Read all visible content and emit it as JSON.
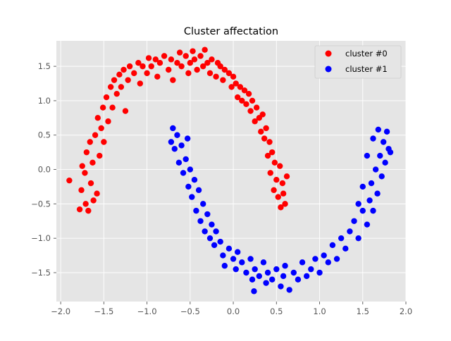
{
  "chart_data": {
    "type": "scatter",
    "title": "Cluster affectation",
    "xlabel": "",
    "ylabel": "",
    "xlim": [
      -2.05,
      2.0
    ],
    "ylim": [
      -1.92,
      1.87
    ],
    "xticks": [
      -2.0,
      -1.5,
      -1.0,
      -0.5,
      0.0,
      0.5,
      1.0,
      1.5,
      2.0
    ],
    "xtick_labels": [
      "−2.0",
      "−1.5",
      "−1.0",
      "−0.5",
      "0.0",
      "0.5",
      "1.0",
      "1.5",
      "2.0"
    ],
    "yticks": [
      -1.5,
      -1.0,
      -0.5,
      0.0,
      0.5,
      1.0,
      1.5
    ],
    "ytick_labels": [
      "−1.5",
      "−1.0",
      "−0.5",
      "0.0",
      "0.5",
      "1.0",
      "1.5"
    ],
    "grid": true,
    "style": "ggplot",
    "legend_position": "top-right",
    "series": [
      {
        "name": "cluster #0",
        "color": "#ff0000",
        "points": [
          [
            -1.9,
            -0.16
          ],
          [
            -1.78,
            -0.58
          ],
          [
            -1.76,
            -0.3
          ],
          [
            -1.75,
            0.05
          ],
          [
            -1.72,
            -0.05
          ],
          [
            -1.71,
            -0.5
          ],
          [
            -1.7,
            0.25
          ],
          [
            -1.68,
            -0.6
          ],
          [
            -1.66,
            0.4
          ],
          [
            -1.65,
            -0.2
          ],
          [
            -1.63,
            0.1
          ],
          [
            -1.62,
            -0.45
          ],
          [
            -1.6,
            0.5
          ],
          [
            -1.58,
            -0.35
          ],
          [
            -1.57,
            0.75
          ],
          [
            -1.55,
            0.2
          ],
          [
            -1.53,
            0.6
          ],
          [
            -1.51,
            0.9
          ],
          [
            -1.5,
            0.4
          ],
          [
            -1.47,
            1.05
          ],
          [
            -1.45,
            0.7
          ],
          [
            -1.42,
            1.2
          ],
          [
            -1.4,
            0.9
          ],
          [
            -1.38,
            1.3
          ],
          [
            -1.35,
            1.1
          ],
          [
            -1.32,
            1.38
          ],
          [
            -1.3,
            1.2
          ],
          [
            -1.27,
            1.45
          ],
          [
            -1.25,
            0.85
          ],
          [
            -1.22,
            1.3
          ],
          [
            -1.2,
            1.5
          ],
          [
            -1.15,
            1.4
          ],
          [
            -1.1,
            1.55
          ],
          [
            -1.08,
            1.25
          ],
          [
            -1.05,
            1.5
          ],
          [
            -1.0,
            1.4
          ],
          [
            -0.98,
            1.62
          ],
          [
            -0.95,
            1.5
          ],
          [
            -0.9,
            1.6
          ],
          [
            -0.88,
            1.35
          ],
          [
            -0.85,
            1.55
          ],
          [
            -0.8,
            1.65
          ],
          [
            -0.75,
            1.45
          ],
          [
            -0.72,
            1.6
          ],
          [
            -0.7,
            1.3
          ],
          [
            -0.65,
            1.55
          ],
          [
            -0.62,
            1.7
          ],
          [
            -0.6,
            1.5
          ],
          [
            -0.55,
            1.65
          ],
          [
            -0.52,
            1.4
          ],
          [
            -0.5,
            1.55
          ],
          [
            -0.47,
            1.72
          ],
          [
            -0.45,
            1.6
          ],
          [
            -0.42,
            1.45
          ],
          [
            -0.38,
            1.65
          ],
          [
            -0.35,
            1.5
          ],
          [
            -0.33,
            1.74
          ],
          [
            -0.3,
            1.55
          ],
          [
            -0.27,
            1.4
          ],
          [
            -0.25,
            1.6
          ],
          [
            -0.2,
            1.35
          ],
          [
            -0.18,
            1.55
          ],
          [
            -0.15,
            1.5
          ],
          [
            -0.12,
            1.3
          ],
          [
            -0.1,
            1.45
          ],
          [
            -0.05,
            1.4
          ],
          [
            -0.02,
            1.2
          ],
          [
            0.0,
            1.35
          ],
          [
            0.03,
            1.25
          ],
          [
            0.05,
            1.05
          ],
          [
            0.08,
            1.2
          ],
          [
            0.1,
            1.0
          ],
          [
            0.13,
            1.15
          ],
          [
            0.15,
            0.95
          ],
          [
            0.18,
            1.1
          ],
          [
            0.2,
            0.85
          ],
          [
            0.22,
            1.0
          ],
          [
            0.25,
            0.7
          ],
          [
            0.27,
            0.9
          ],
          [
            0.3,
            0.75
          ],
          [
            0.32,
            0.55
          ],
          [
            0.34,
            0.8
          ],
          [
            0.36,
            0.45
          ],
          [
            0.38,
            0.6
          ],
          [
            0.4,
            0.2
          ],
          [
            0.42,
            0.4
          ],
          [
            0.43,
            -0.05
          ],
          [
            0.45,
            0.25
          ],
          [
            0.47,
            -0.3
          ],
          [
            0.48,
            0.1
          ],
          [
            0.5,
            -0.15
          ],
          [
            0.52,
            -0.4
          ],
          [
            0.54,
            0.05
          ],
          [
            0.55,
            -0.55
          ],
          [
            0.57,
            -0.2
          ],
          [
            0.58,
            -0.35
          ],
          [
            0.6,
            -0.5
          ],
          [
            0.62,
            -0.1
          ]
        ]
      },
      {
        "name": "cluster #1",
        "color": "#0000ff",
        "points": [
          [
            -0.72,
            0.4
          ],
          [
            -0.7,
            0.6
          ],
          [
            -0.68,
            0.3
          ],
          [
            -0.65,
            0.5
          ],
          [
            -0.63,
            0.1
          ],
          [
            -0.6,
            0.35
          ],
          [
            -0.58,
            -0.05
          ],
          [
            -0.55,
            0.15
          ],
          [
            -0.53,
            0.45
          ],
          [
            -0.52,
            -0.25
          ],
          [
            -0.5,
            0.0
          ],
          [
            -0.48,
            -0.4
          ],
          [
            -0.45,
            -0.15
          ],
          [
            -0.43,
            -0.6
          ],
          [
            -0.4,
            -0.3
          ],
          [
            -0.38,
            -0.75
          ],
          [
            -0.35,
            -0.5
          ],
          [
            -0.33,
            -0.9
          ],
          [
            -0.3,
            -0.65
          ],
          [
            -0.27,
            -1.0
          ],
          [
            -0.25,
            -0.8
          ],
          [
            -0.22,
            -1.1
          ],
          [
            -0.2,
            -0.9
          ],
          [
            -0.15,
            -1.05
          ],
          [
            -0.12,
            -1.25
          ],
          [
            -0.1,
            -1.4
          ],
          [
            -0.05,
            -1.15
          ],
          [
            0.0,
            -1.3
          ],
          [
            0.03,
            -1.45
          ],
          [
            0.05,
            -1.2
          ],
          [
            0.1,
            -1.35
          ],
          [
            0.15,
            -1.5
          ],
          [
            0.2,
            -1.3
          ],
          [
            0.22,
            -1.6
          ],
          [
            0.24,
            -1.77
          ],
          [
            0.25,
            -1.45
          ],
          [
            0.3,
            -1.55
          ],
          [
            0.35,
            -1.35
          ],
          [
            0.38,
            -1.65
          ],
          [
            0.4,
            -1.5
          ],
          [
            0.45,
            -1.6
          ],
          [
            0.5,
            -1.45
          ],
          [
            0.55,
            -1.7
          ],
          [
            0.58,
            -1.55
          ],
          [
            0.6,
            -1.4
          ],
          [
            0.65,
            -1.75
          ],
          [
            0.7,
            -1.5
          ],
          [
            0.75,
            -1.6
          ],
          [
            0.8,
            -1.35
          ],
          [
            0.85,
            -1.55
          ],
          [
            0.9,
            -1.45
          ],
          [
            0.95,
            -1.3
          ],
          [
            1.0,
            -1.5
          ],
          [
            1.05,
            -1.25
          ],
          [
            1.1,
            -1.35
          ],
          [
            1.15,
            -1.1
          ],
          [
            1.2,
            -1.3
          ],
          [
            1.25,
            -1.0
          ],
          [
            1.3,
            -1.15
          ],
          [
            1.35,
            -0.9
          ],
          [
            1.4,
            -0.75
          ],
          [
            1.45,
            -1.0
          ],
          [
            1.5,
            -0.6
          ],
          [
            1.55,
            -0.8
          ],
          [
            1.58,
            -0.45
          ],
          [
            1.6,
            -0.2
          ],
          [
            1.62,
            -0.6
          ],
          [
            1.65,
            0.0
          ],
          [
            1.67,
            -0.35
          ],
          [
            1.7,
            0.2
          ],
          [
            1.72,
            -0.1
          ],
          [
            1.74,
            0.4
          ],
          [
            1.76,
            0.1
          ],
          [
            1.78,
            0.55
          ],
          [
            1.8,
            0.3
          ],
          [
            1.82,
            0.25
          ],
          [
            1.68,
            0.58
          ],
          [
            1.55,
            0.2
          ],
          [
            1.5,
            -0.25
          ],
          [
            1.45,
            -0.5
          ],
          [
            1.62,
            0.45
          ]
        ]
      }
    ]
  }
}
